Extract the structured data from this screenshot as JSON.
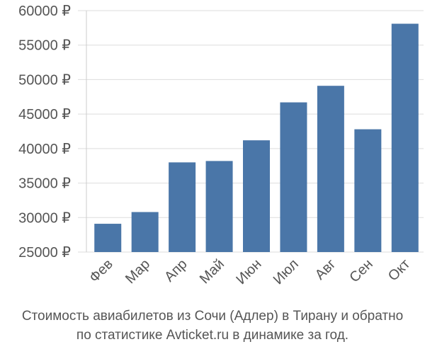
{
  "chart_data": {
    "type": "bar",
    "categories": [
      "Фев",
      "Мар",
      "Апр",
      "Май",
      "Июн",
      "Июл",
      "Авг",
      "Сен",
      "Окт"
    ],
    "values": [
      29100,
      30800,
      38000,
      38200,
      41200,
      46700,
      49100,
      42800,
      58100
    ],
    "ylim": [
      25000,
      60000
    ],
    "yticks": [
      25000,
      30000,
      35000,
      40000,
      45000,
      50000,
      55000,
      60000
    ],
    "ytick_labels": [
      "25000 ₽",
      "30000 ₽",
      "35000 ₽",
      "40000 ₽",
      "45000 ₽",
      "50000 ₽",
      "55000 ₽",
      "60000 ₽"
    ],
    "grid": true,
    "bar_color": "#4a76a8",
    "legend": "none"
  },
  "caption": {
    "line1": "Стоимость авиабилетов из Сочи (Адлер) в Тирану и обратно",
    "line2": "по статистике Avticket.ru в динамике за год."
  }
}
